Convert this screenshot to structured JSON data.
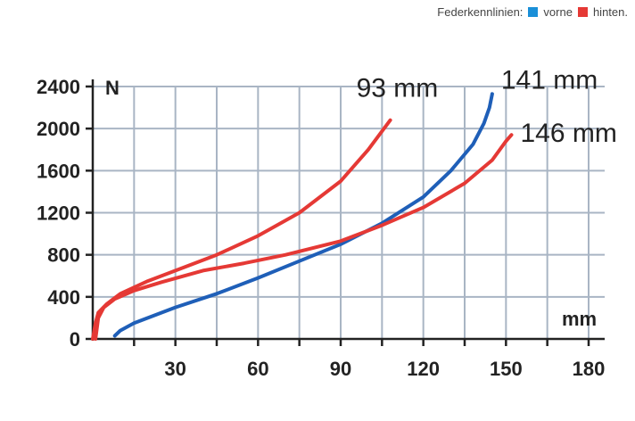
{
  "legend": {
    "prefix": "Federkennlinien:",
    "items": [
      {
        "label": "vorne",
        "color": "#1a8fd8"
      },
      {
        "label": "hinten.",
        "color": "#e53935"
      }
    ]
  },
  "chart_data": {
    "type": "line",
    "title": "",
    "xlabel": "mm",
    "ylabel": "N",
    "xlim": [
      0,
      180
    ],
    "ylim": [
      0,
      2400
    ],
    "xticks": [
      30,
      60,
      90,
      120,
      150,
      180
    ],
    "yticks": [
      0,
      400,
      800,
      1200,
      1600,
      2000,
      2400
    ],
    "grid": true,
    "series": [
      {
        "color": "#e53935",
        "end_label": "93 mm",
        "points": [
          [
            0,
            0
          ],
          [
            1,
            150
          ],
          [
            2,
            250
          ],
          [
            5,
            330
          ],
          [
            10,
            430
          ],
          [
            20,
            550
          ],
          [
            30,
            650
          ],
          [
            45,
            800
          ],
          [
            60,
            980
          ],
          [
            75,
            1200
          ],
          [
            90,
            1500
          ],
          [
            100,
            1800
          ],
          [
            108,
            2080
          ]
        ]
      },
      {
        "color": "#1f5fb8",
        "end_label": "141 mm",
        "points": [
          [
            8,
            30
          ],
          [
            10,
            80
          ],
          [
            15,
            150
          ],
          [
            30,
            300
          ],
          [
            45,
            430
          ],
          [
            60,
            580
          ],
          [
            75,
            740
          ],
          [
            90,
            900
          ],
          [
            105,
            1100
          ],
          [
            120,
            1350
          ],
          [
            130,
            1600
          ],
          [
            138,
            1850
          ],
          [
            142,
            2050
          ],
          [
            144,
            2200
          ],
          [
            145,
            2330
          ]
        ]
      },
      {
        "color": "#e53935",
        "end_label": "146 mm",
        "points": [
          [
            1,
            0
          ],
          [
            2,
            200
          ],
          [
            4,
            300
          ],
          [
            8,
            380
          ],
          [
            15,
            460
          ],
          [
            25,
            540
          ],
          [
            40,
            650
          ],
          [
            55,
            720
          ],
          [
            70,
            800
          ],
          [
            90,
            930
          ],
          [
            105,
            1080
          ],
          [
            120,
            1250
          ],
          [
            135,
            1480
          ],
          [
            145,
            1700
          ],
          [
            150,
            1880
          ],
          [
            152,
            1940
          ]
        ]
      }
    ]
  }
}
